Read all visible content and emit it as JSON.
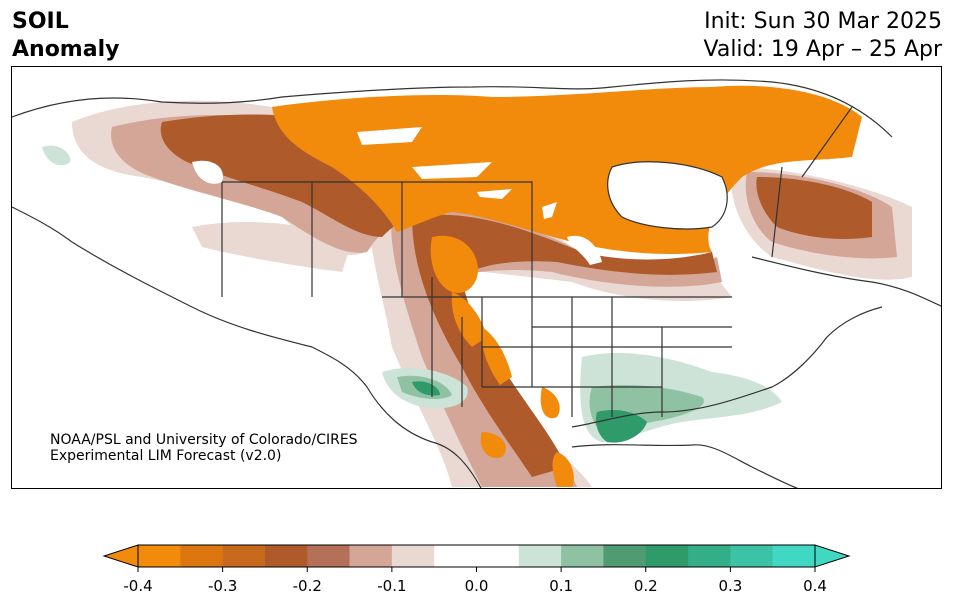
{
  "header": {
    "title_line1": "SOIL",
    "title_line2": "Anomaly",
    "init_text": "Init: Sun 30 Mar 2025",
    "valid_text": "Valid: 19 Apr – 25 Apr"
  },
  "credit": {
    "line1": "NOAA/PSL and University of Colorado/CIRES",
    "line2": "Experimental LIM Forecast (v2.0)"
  },
  "colorbar": {
    "ticks": [
      "-0.4",
      "-0.3",
      "-0.2",
      "-0.1",
      "0.0",
      "0.1",
      "0.2",
      "0.3",
      "0.4"
    ],
    "colors": [
      "#f28a0c",
      "#dc770f",
      "#c86a1e",
      "#ae5a2a",
      "#b47058",
      "#d4a698",
      "#ead8d2",
      "#ffffff",
      "#ffffff",
      "#cde3d7",
      "#8fc2a3",
      "#4f9c72",
      "#2f9a6a",
      "#34ae87",
      "#3cc2a6",
      "#40d8c3"
    ]
  },
  "map_colors": {
    "strong_dry": "#f28a0c",
    "dry": "#c86a1e",
    "moderate_dry": "#ae5a2a",
    "weak_dry": "#d4a698",
    "very_weak_dry": "#ead8d2",
    "weak_wet": "#cde3d7",
    "wet": "#8fc2a3",
    "strong_wet": "#2f9a6a",
    "coastline": "#333333"
  }
}
